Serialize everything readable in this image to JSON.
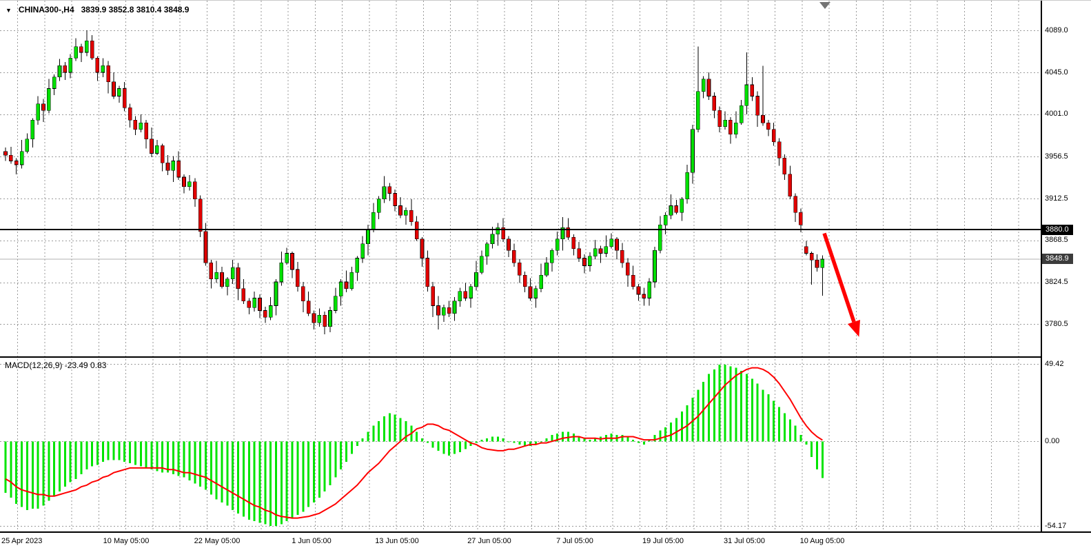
{
  "window": {
    "symbol_period": "CHINA300-,H4",
    "ohlc": "3839.9 3852.8 3810.4 3848.9",
    "dropdown_icon": "▼"
  },
  "colors": {
    "up": "#00e000",
    "down": "#e00000",
    "wick": "#000000",
    "outline": "#000000",
    "histogram": "#00e400",
    "signal": "#ff0000",
    "grid": "#999999",
    "hline": "#000000",
    "current_price_line": "#b0b0b0",
    "arrow": "#ff0000",
    "shift_marker": "#737373",
    "hline_label_bg": "#000000",
    "bid_label_bg": "#3c3c3c"
  },
  "indicator_label": "MACD(12,26,9) -23.49 0.83",
  "chart_data": [
    {
      "type": "candlestick",
      "title": "CHINA300-,H4",
      "ylim": [
        3770,
        4100
      ],
      "grid": true,
      "y_ticks": [
        "4089.0",
        "4045.0",
        "4001.0",
        "3956.5",
        "3912.5",
        "3868.5",
        "3824.5",
        "3780.5"
      ],
      "hline": {
        "value": 3880.0,
        "label": "3880.0"
      },
      "last_price": {
        "value": 3848.9,
        "label": "3848.9"
      },
      "ohlc_current": {
        "open": 3839.9,
        "high": 3852.8,
        "low": 3810.4,
        "close": 3848.9
      },
      "x_ticks": [
        {
          "text": "25 Apr 2023",
          "x": 2,
          "align": "left"
        },
        {
          "text": "10 May 05:00",
          "x": 183
        },
        {
          "text": "22 May 05:00",
          "x": 315
        },
        {
          "text": "1 Jun 05:00",
          "x": 452
        },
        {
          "text": "13 Jun 05:00",
          "x": 576
        },
        {
          "text": "27 Jun 05:00",
          "x": 710
        },
        {
          "text": "7 Jul 05:00",
          "x": 834
        },
        {
          "text": "19 Jul 05:00",
          "x": 962
        },
        {
          "text": "31 Jul 05:00",
          "x": 1080
        },
        {
          "text": "10 Aug 05:00",
          "x": 1193
        }
      ],
      "annotation_arrow": {
        "from_price": 3876,
        "to_price": 3784,
        "direction": "down-right"
      },
      "candles": [
        [
          3962,
          3966,
          3952,
          3958
        ],
        [
          3958,
          3967,
          3949,
          3952
        ],
        [
          3952,
          3955,
          3938,
          3948
        ],
        [
          3948,
          3974,
          3944,
          3962
        ],
        [
          3962,
          3981,
          3960,
          3975
        ],
        [
          3975,
          3997,
          3966,
          3995
        ],
        [
          3995,
          4020,
          3990,
          4012
        ],
        [
          4012,
          4017,
          3993,
          4005
        ],
        [
          4005,
          4038,
          4002,
          4028
        ],
        [
          4028,
          4043,
          4021,
          4040
        ],
        [
          4040,
          4059,
          4036,
          4052
        ],
        [
          4052,
          4056,
          4037,
          4045
        ],
        [
          4045,
          4064,
          4039,
          4060
        ],
        [
          4060,
          4081,
          4057,
          4072
        ],
        [
          4072,
          4075,
          4056,
          4066
        ],
        [
          4066,
          4089,
          4062,
          4078
        ],
        [
          4078,
          4084,
          4058,
          4060
        ],
        [
          4060,
          4062,
          4036,
          4045
        ],
        [
          4045,
          4060,
          4040,
          4052
        ],
        [
          4052,
          4057,
          4023,
          4035
        ],
        [
          4035,
          4045,
          4017,
          4020
        ],
        [
          4020,
          4031,
          4013,
          4028
        ],
        [
          4028,
          4035,
          4004,
          4008
        ],
        [
          4008,
          4012,
          3987,
          3995
        ],
        [
          3995,
          3999,
          3979,
          3985
        ],
        [
          3985,
          4001,
          3982,
          3992
        ],
        [
          3992,
          3995,
          3965,
          3975
        ],
        [
          3975,
          3987,
          3956,
          3960
        ],
        [
          3960,
          3974,
          3958,
          3968
        ],
        [
          3968,
          3970,
          3941,
          3950
        ],
        [
          3950,
          3958,
          3937,
          3942
        ],
        [
          3942,
          3957,
          3930,
          3952
        ],
        [
          3952,
          3962,
          3932,
          3935
        ],
        [
          3935,
          3938,
          3918,
          3925
        ],
        [
          3925,
          3937,
          3921,
          3930
        ],
        [
          3930,
          3934,
          3904,
          3912
        ],
        [
          3912,
          3916,
          3872,
          3878
        ],
        [
          3878,
          3887,
          3842,
          3845
        ],
        [
          3845,
          3848,
          3818,
          3828
        ],
        [
          3828,
          3847,
          3824,
          3835
        ],
        [
          3835,
          3841,
          3818,
          3820
        ],
        [
          3820,
          3830,
          3811,
          3828
        ],
        [
          3828,
          3848,
          3823,
          3840
        ],
        [
          3840,
          3845,
          3806,
          3818
        ],
        [
          3818,
          3828,
          3802,
          3805
        ],
        [
          3805,
          3808,
          3791,
          3798
        ],
        [
          3798,
          3815,
          3794,
          3808
        ],
        [
          3808,
          3812,
          3787,
          3795
        ],
        [
          3795,
          3799,
          3782,
          3788
        ],
        [
          3788,
          3809,
          3785,
          3800
        ],
        [
          3800,
          3828,
          3790,
          3825
        ],
        [
          3825,
          3857,
          3821,
          3845
        ],
        [
          3845,
          3861,
          3843,
          3855
        ],
        [
          3855,
          3857,
          3829,
          3838
        ],
        [
          3838,
          3846,
          3815,
          3820
        ],
        [
          3820,
          3825,
          3793,
          3805
        ],
        [
          3805,
          3815,
          3789,
          3792
        ],
        [
          3792,
          3795,
          3775,
          3782
        ],
        [
          3782,
          3797,
          3778,
          3790
        ],
        [
          3790,
          3794,
          3770,
          3778
        ],
        [
          3778,
          3799,
          3772,
          3795
        ],
        [
          3795,
          3819,
          3792,
          3810
        ],
        [
          3810,
          3828,
          3800,
          3825
        ],
        [
          3825,
          3837,
          3814,
          3818
        ],
        [
          3818,
          3841,
          3816,
          3835
        ],
        [
          3835,
          3852,
          3826,
          3850
        ],
        [
          3850,
          3873,
          3845,
          3865
        ],
        [
          3865,
          3885,
          3853,
          3880
        ],
        [
          3880,
          3908,
          3877,
          3898
        ],
        [
          3898,
          3915,
          3891,
          3912
        ],
        [
          3912,
          3936,
          3908,
          3925
        ],
        [
          3925,
          3929,
          3910,
          3918
        ],
        [
          3918,
          3922,
          3899,
          3905
        ],
        [
          3905,
          3914,
          3892,
          3895
        ],
        [
          3895,
          3903,
          3885,
          3900
        ],
        [
          3900,
          3912,
          3884,
          3888
        ],
        [
          3888,
          3894,
          3868,
          3870
        ],
        [
          3870,
          3872,
          3841,
          3850
        ],
        [
          3850,
          3858,
          3815,
          3820
        ],
        [
          3820,
          3825,
          3788,
          3800
        ],
        [
          3800,
          3810,
          3775,
          3790
        ],
        [
          3790,
          3801,
          3783,
          3798
        ],
        [
          3798,
          3805,
          3788,
          3792
        ],
        [
          3792,
          3809,
          3784,
          3805
        ],
        [
          3805,
          3819,
          3799,
          3815
        ],
        [
          3815,
          3824,
          3805,
          3808
        ],
        [
          3808,
          3823,
          3798,
          3820
        ],
        [
          3820,
          3847,
          3816,
          3835
        ],
        [
          3835,
          3858,
          3833,
          3852
        ],
        [
          3852,
          3867,
          3843,
          3865
        ],
        [
          3865,
          3883,
          3860,
          3875
        ],
        [
          3875,
          3887,
          3863,
          3882
        ],
        [
          3882,
          3892,
          3867,
          3870
        ],
        [
          3870,
          3873,
          3851,
          3858
        ],
        [
          3858,
          3865,
          3841,
          3845
        ],
        [
          3845,
          3849,
          3824,
          3832
        ],
        [
          3832,
          3836,
          3814,
          3820
        ],
        [
          3820,
          3829,
          3805,
          3808
        ],
        [
          3808,
          3821,
          3798,
          3818
        ],
        [
          3818,
          3844,
          3814,
          3832
        ],
        [
          3832,
          3851,
          3830,
          3845
        ],
        [
          3845,
          3860,
          3836,
          3858
        ],
        [
          3858,
          3878,
          3853,
          3870
        ],
        [
          3870,
          3893,
          3858,
          3882
        ],
        [
          3882,
          3892,
          3869,
          3872
        ],
        [
          3872,
          3875,
          3853,
          3860
        ],
        [
          3860,
          3867,
          3846,
          3850
        ],
        [
          3850,
          3854,
          3834,
          3842
        ],
        [
          3842,
          3856,
          3836,
          3852
        ],
        [
          3852,
          3869,
          3849,
          3860
        ],
        [
          3860,
          3863,
          3845,
          3855
        ],
        [
          3855,
          3874,
          3851,
          3862
        ],
        [
          3862,
          3876,
          3860,
          3870
        ],
        [
          3870,
          3872,
          3849,
          3858
        ],
        [
          3858,
          3866,
          3840,
          3845
        ],
        [
          3845,
          3850,
          3820,
          3832
        ],
        [
          3832,
          3842,
          3817,
          3820
        ],
        [
          3820,
          3823,
          3805,
          3812
        ],
        [
          3812,
          3819,
          3800,
          3808
        ],
        [
          3808,
          3829,
          3800,
          3825
        ],
        [
          3825,
          3862,
          3819,
          3858
        ],
        [
          3858,
          3894,
          3855,
          3885
        ],
        [
          3885,
          3898,
          3875,
          3895
        ],
        [
          3895,
          3917,
          3891,
          3905
        ],
        [
          3905,
          3911,
          3896,
          3898
        ],
        [
          3898,
          3914,
          3889,
          3912
        ],
        [
          3912,
          3948,
          3907,
          3940
        ],
        [
          3940,
          3990,
          3928,
          3985
        ],
        [
          3985,
          4072,
          3982,
          4025
        ],
        [
          4025,
          4041,
          4018,
          4038
        ],
        [
          4038,
          4045,
          4016,
          4020
        ],
        [
          4020,
          4024,
          3997,
          4005
        ],
        [
          4005,
          4009,
          3982,
          3988
        ],
        [
          3988,
          4004,
          3985,
          3995
        ],
        [
          3995,
          3998,
          3970,
          3980
        ],
        [
          3980,
          4004,
          3976,
          3992
        ],
        [
          3992,
          4016,
          3990,
          4010
        ],
        [
          4010,
          4066,
          4001,
          4032
        ],
        [
          4032,
          4040,
          4015,
          4020
        ],
        [
          4020,
          4025,
          3988,
          4000
        ],
        [
          4000,
          4052,
          3989,
          3992
        ],
        [
          3992,
          3995,
          3978,
          3985
        ],
        [
          3985,
          3992,
          3968,
          3972
        ],
        [
          3972,
          3976,
          3947,
          3955
        ],
        [
          3955,
          3959,
          3932,
          3938
        ],
        [
          3938,
          3947,
          3912,
          3915
        ],
        [
          3915,
          3918,
          3888,
          3898
        ],
        [
          3898,
          3902,
          3877,
          3885
        ],
        [
          3862,
          3868,
          3853,
          3855
        ],
        [
          3855,
          3857,
          3822,
          3848
        ],
        [
          3848,
          3854,
          3836,
          3839.9
        ],
        [
          3839.9,
          3852.8,
          3810.4,
          3848.9
        ]
      ]
    },
    {
      "type": "macd",
      "label": "MACD(12,26,9) -23.49 0.83",
      "params": [
        12,
        26,
        9
      ],
      "last_main": -23.49,
      "last_signal": 0.83,
      "ylim": [
        -58,
        53
      ],
      "y_ticks": [
        "49.42",
        "0.00",
        "-54.17"
      ],
      "histogram": [
        -33,
        -36,
        -40,
        -42,
        -44,
        -43,
        -43,
        -41,
        -38,
        -35,
        -32,
        -29,
        -26,
        -24,
        -21,
        -18,
        -16,
        -15,
        -13,
        -12,
        -12,
        -12,
        -13,
        -14,
        -15,
        -16,
        -17,
        -18,
        -19,
        -20,
        -20,
        -21,
        -22,
        -23,
        -25,
        -27,
        -29,
        -31,
        -34,
        -37,
        -39,
        -41,
        -44,
        -46,
        -48,
        -50,
        -51,
        -52,
        -53,
        -54,
        -54,
        -53,
        -51,
        -49,
        -47,
        -45,
        -42,
        -39,
        -36,
        -32,
        -28,
        -23,
        -18,
        -13,
        -8,
        -3,
        2,
        6,
        10,
        13,
        16,
        18,
        17,
        15,
        13,
        10,
        6,
        2,
        -1,
        -4,
        -6,
        -8,
        -9,
        -8,
        -7,
        -5,
        -3,
        -1,
        1,
        2,
        3,
        3,
        2,
        0,
        -1,
        -2,
        -3,
        -3,
        -2,
        0,
        2,
        4,
        5,
        6,
        6,
        5,
        3,
        2,
        1,
        2,
        3,
        4,
        5,
        4,
        4,
        3,
        1,
        -1,
        -2,
        1,
        4,
        7,
        9,
        12,
        15,
        19,
        23,
        28,
        33,
        38,
        43,
        46,
        49,
        49,
        48,
        47,
        45,
        43,
        40,
        37,
        33,
        30,
        26,
        22,
        18,
        14,
        10,
        4,
        -2,
        -10,
        -18,
        -23.5
      ],
      "signal": [
        -24,
        -26,
        -29,
        -31,
        -32,
        -33,
        -34,
        -34,
        -35,
        -35,
        -34,
        -33,
        -32,
        -31,
        -29,
        -28,
        -26,
        -25,
        -23,
        -22,
        -20,
        -19,
        -18,
        -17,
        -17,
        -17,
        -17,
        -17,
        -17,
        -17,
        -18,
        -18,
        -19,
        -20,
        -20,
        -21,
        -22,
        -23,
        -25,
        -27,
        -29,
        -31,
        -33,
        -35,
        -37,
        -39,
        -41,
        -42,
        -44,
        -45,
        -47,
        -48,
        -48.5,
        -49,
        -49,
        -48.5,
        -48,
        -47,
        -46,
        -44,
        -42,
        -40,
        -37,
        -34,
        -31,
        -28,
        -24,
        -20,
        -17,
        -14,
        -10,
        -6,
        -3,
        0,
        3,
        5,
        8,
        9,
        11,
        11,
        10,
        8,
        7,
        5,
        3,
        1,
        -1,
        -2,
        -4,
        -5,
        -5.5,
        -6,
        -6,
        -5,
        -5,
        -4,
        -3,
        -2,
        -2,
        -1,
        -1,
        0,
        1,
        2,
        2.5,
        3,
        3,
        2,
        2,
        2,
        1.5,
        2,
        2,
        2,
        3,
        3,
        3,
        2,
        1,
        1,
        1,
        2,
        3,
        4,
        6,
        8,
        10,
        13,
        16,
        20,
        24,
        28,
        32,
        36,
        39,
        42,
        44,
        46,
        47,
        47,
        46,
        44,
        41,
        37,
        32,
        27,
        21,
        15,
        10,
        6,
        3,
        0.8
      ]
    }
  ]
}
